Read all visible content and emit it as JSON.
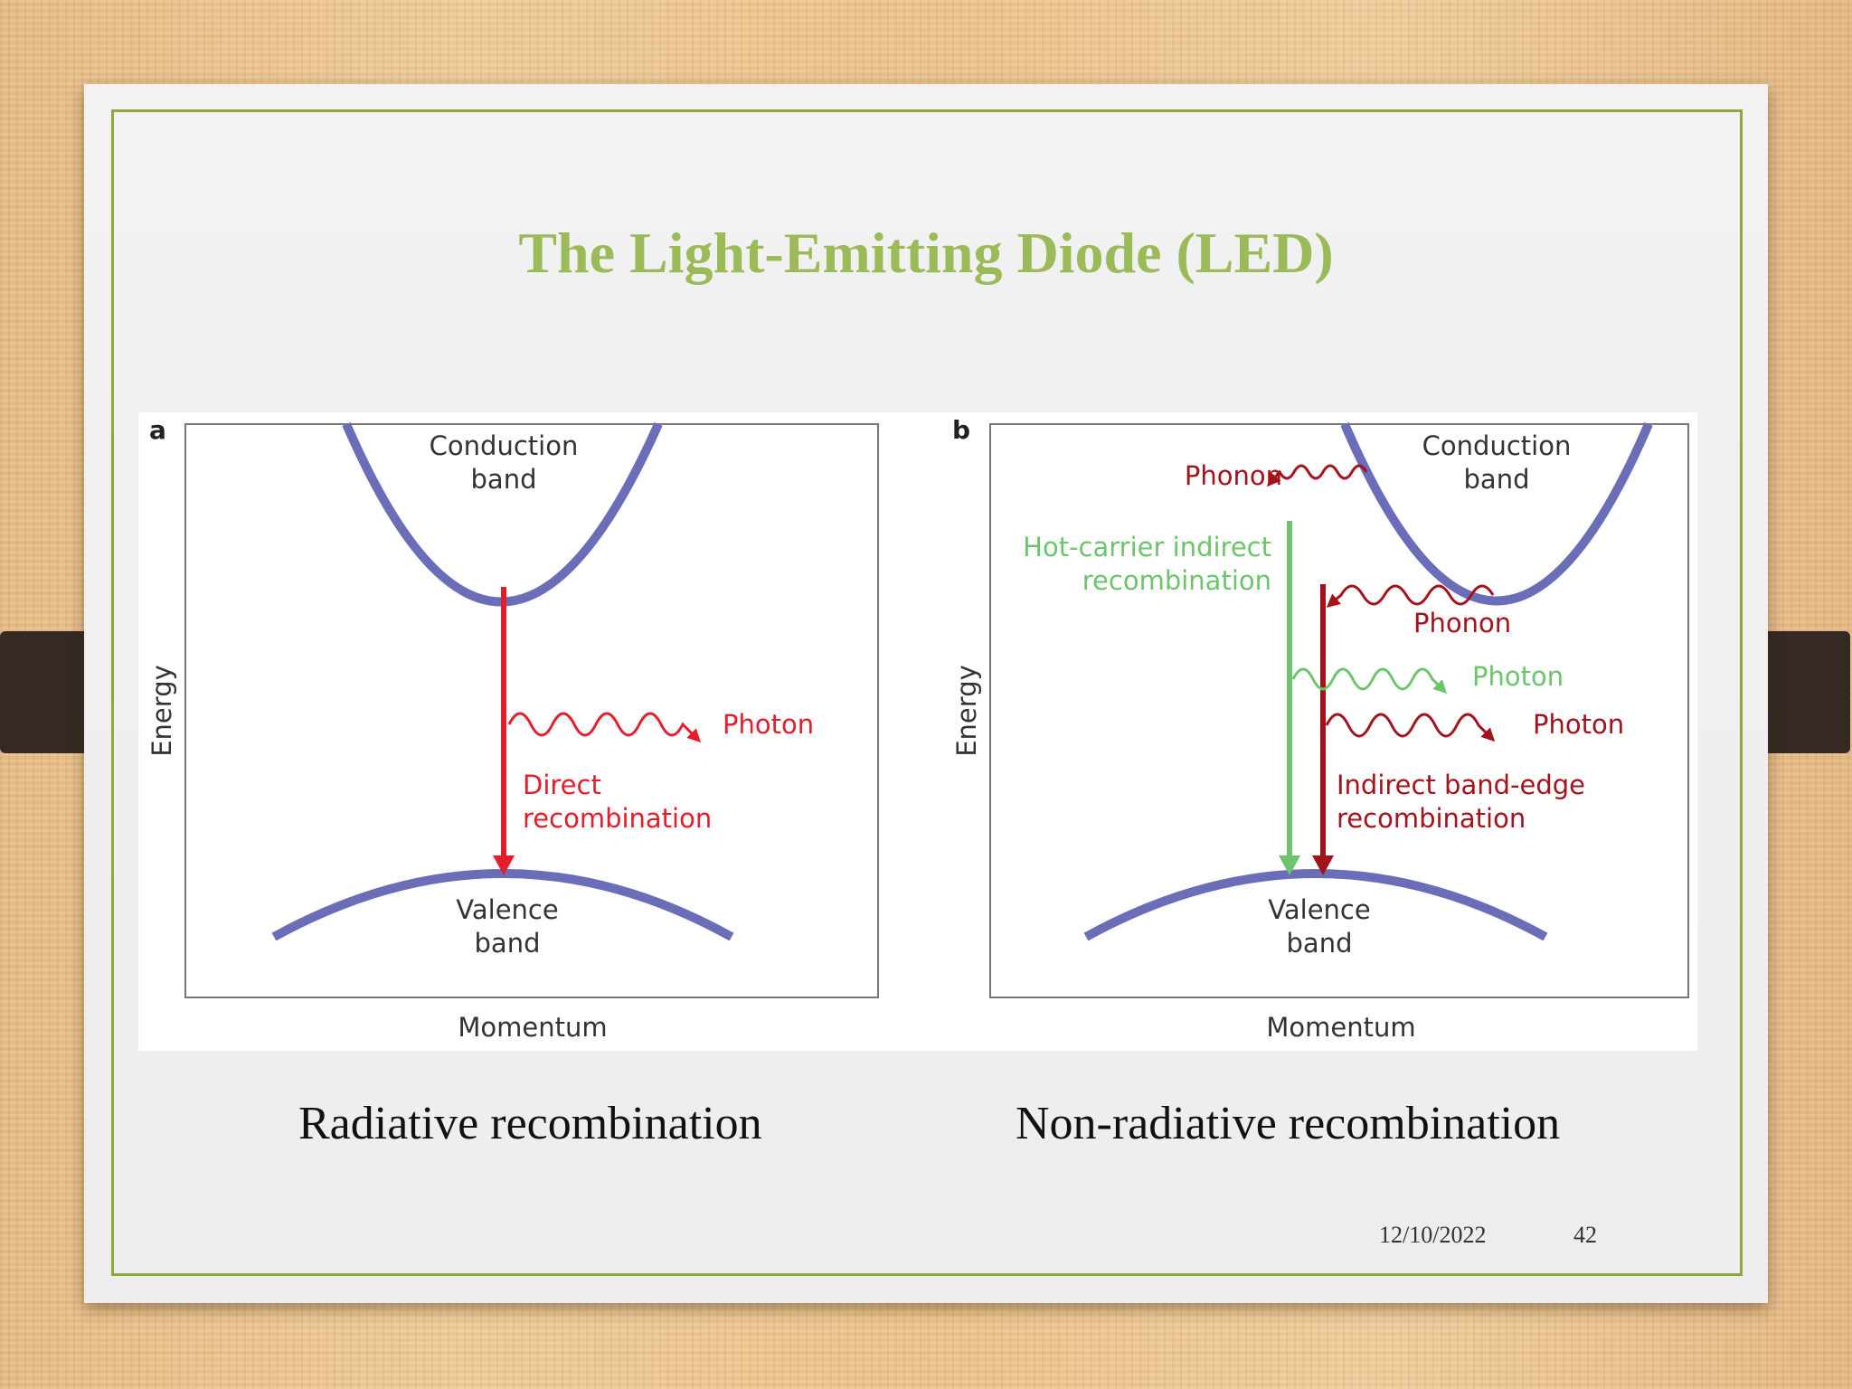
{
  "slide": {
    "title": "The Light-Emitting Diode (LED)",
    "caption_left": "Radiative recombination",
    "caption_right": "Non-radiative recombination",
    "date": "12/10/2022",
    "page_number": "42"
  },
  "panel_a": {
    "letter": "a",
    "conduction_line1": "Conduction",
    "conduction_line2": "band",
    "valence_line1": "Valence",
    "valence_line2": "band",
    "y_axis": "Energy",
    "x_axis": "Momentum",
    "photon": "Photon",
    "direct_line1": "Direct",
    "direct_line2": "recombination"
  },
  "panel_b": {
    "letter": "b",
    "conduction_line1": "Conduction",
    "conduction_line2": "band",
    "valence_line1": "Valence",
    "valence_line2": "band",
    "y_axis": "Energy",
    "x_axis": "Momentum",
    "phonon_top": "Phonon",
    "hot_line1": "Hot-carrier indirect",
    "hot_line2": "recombination",
    "phonon_mid": "Phonon",
    "photon_green": "Photon",
    "photon_red": "Photon",
    "indirect_line1": "Indirect band-edge",
    "indirect_line2": "recombination"
  },
  "colors": {
    "band": "#6a6db8",
    "red": "#e41d2a",
    "darkred": "#a3131c",
    "green": "#6cc56b",
    "title": "#9bbb59",
    "frame": "#8da93e"
  }
}
